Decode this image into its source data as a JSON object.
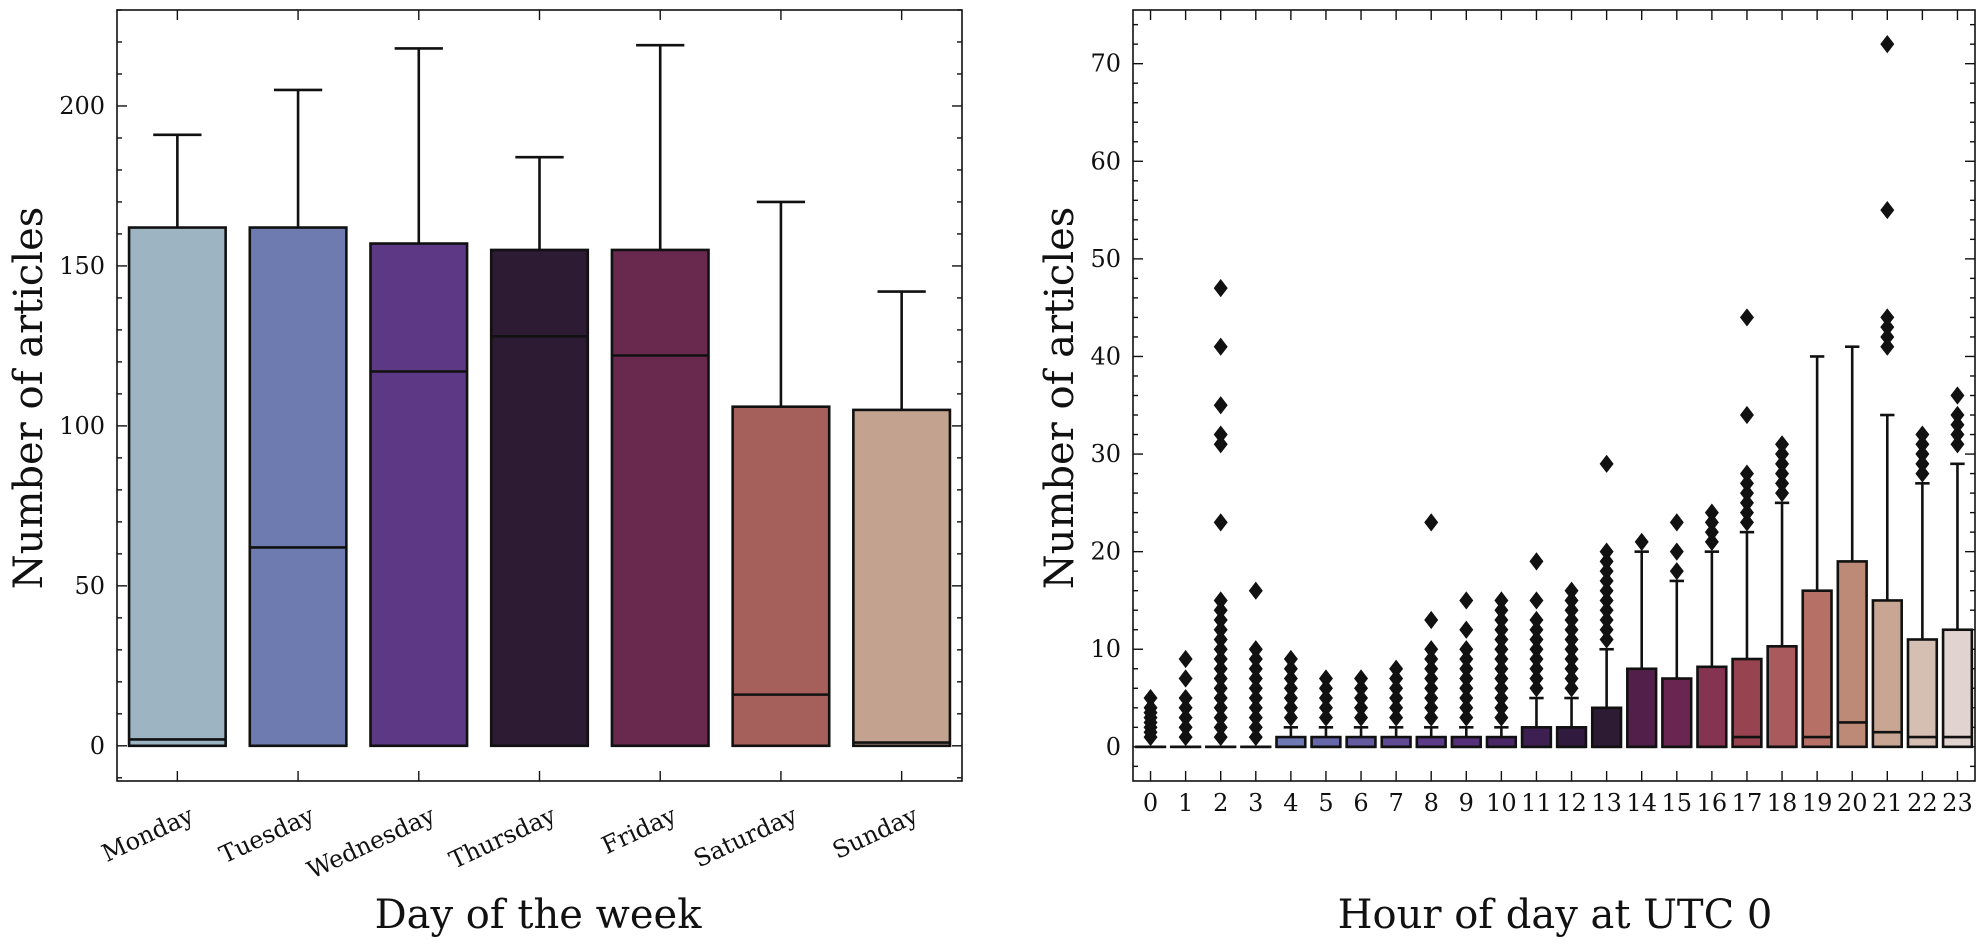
{
  "chart_data": [
    {
      "type": "box",
      "title": "",
      "xlabel": "Day of the week",
      "ylabel": "Number of articles",
      "ylim": [
        -11,
        230
      ],
      "yticks": [
        0,
        50,
        100,
        150,
        200
      ],
      "grid": false,
      "categories": [
        "Monday",
        "Tuesday",
        "Wednesday",
        "Thursday",
        "Friday",
        "Saturday",
        "Sunday"
      ],
      "colors": [
        "#9db4c2",
        "#6e7bb0",
        "#5c3885",
        "#2d1a33",
        "#69284e",
        "#a6605b",
        "#c3a290"
      ],
      "boxes": [
        {
          "whislo": 0,
          "q1": 0,
          "med": 2,
          "q3": 162,
          "whishi": 191
        },
        {
          "whislo": 0,
          "q1": 0,
          "med": 62,
          "q3": 162,
          "whishi": 205
        },
        {
          "whislo": 0,
          "q1": 0,
          "med": 117,
          "q3": 157,
          "whishi": 218
        },
        {
          "whislo": 0,
          "q1": 0,
          "med": 128,
          "q3": 155,
          "whishi": 184
        },
        {
          "whislo": 0,
          "q1": 0,
          "med": 122,
          "q3": 155,
          "whishi": 219
        },
        {
          "whislo": 0,
          "q1": 0,
          "med": 16,
          "q3": 106,
          "whishi": 170
        },
        {
          "whislo": 0,
          "q1": 0,
          "med": 1,
          "q3": 105,
          "whishi": 142
        }
      ]
    },
    {
      "type": "box",
      "title": "",
      "xlabel": "Hour of day at UTC 0",
      "ylabel": "Number of articles",
      "ylim": [
        -3.5,
        75.5
      ],
      "yticks": [
        0,
        10,
        20,
        30,
        40,
        50,
        60,
        70
      ],
      "grid": false,
      "categories": [
        "0",
        "1",
        "2",
        "3",
        "4",
        "5",
        "6",
        "7",
        "8",
        "9",
        "10",
        "11",
        "12",
        "13",
        "14",
        "15",
        "16",
        "17",
        "18",
        "19",
        "20",
        "21",
        "22",
        "23"
      ],
      "colors": [
        "#b0c4d3",
        "#9cb3c8",
        "#8ba0c2",
        "#7d8cbb",
        "#6f79b4",
        "#6767ab",
        "#635aa0",
        "#5f4a95",
        "#5c3b88",
        "#552f79",
        "#4b2666",
        "#3e1f52",
        "#301a3d",
        "#2d1a33",
        "#521f4b",
        "#6a2650",
        "#843450",
        "#974350",
        "#a85a5c",
        "#b67066",
        "#be8a78",
        "#c9a693",
        "#d5beb2",
        "#e0d3d0"
      ],
      "boxes": [
        {
          "whislo": 0,
          "q1": 0,
          "med": 0,
          "q3": 0,
          "whishi": 0,
          "fliers": [
            1,
            1.5,
            2,
            2.5,
            3,
            3.5,
            4,
            5
          ]
        },
        {
          "whislo": 0,
          "q1": 0,
          "med": 0,
          "q3": 0,
          "whishi": 0,
          "fliers": [
            1,
            2,
            3,
            4,
            5,
            7,
            9
          ]
        },
        {
          "whislo": 0,
          "q1": 0,
          "med": 0,
          "q3": 0,
          "whishi": 0,
          "fliers": [
            1,
            2,
            3,
            4,
            5,
            6,
            7,
            8,
            9,
            10,
            11,
            12,
            13,
            14,
            15,
            23,
            31,
            32,
            35,
            41,
            47
          ]
        },
        {
          "whislo": 0,
          "q1": 0,
          "med": 0,
          "q3": 0,
          "whishi": 0,
          "fliers": [
            1,
            2,
            3,
            4,
            5,
            6,
            7,
            8,
            9,
            10,
            16
          ]
        },
        {
          "whislo": 0,
          "q1": 0,
          "med": 0,
          "q3": 1,
          "whishi": 2,
          "fliers": [
            3,
            4,
            5,
            6,
            7,
            8,
            9
          ]
        },
        {
          "whislo": 0,
          "q1": 0,
          "med": 0,
          "q3": 1,
          "whishi": 2,
          "fliers": [
            3,
            4,
            5,
            6,
            7
          ]
        },
        {
          "whislo": 0,
          "q1": 0,
          "med": 0,
          "q3": 1,
          "whishi": 2,
          "fliers": [
            3,
            4,
            5,
            6,
            7
          ]
        },
        {
          "whislo": 0,
          "q1": 0,
          "med": 0,
          "q3": 1,
          "whishi": 2,
          "fliers": [
            3,
            4,
            5,
            6,
            7,
            8
          ]
        },
        {
          "whislo": 0,
          "q1": 0,
          "med": 0,
          "q3": 1,
          "whishi": 2,
          "fliers": [
            3,
            4,
            5,
            6,
            7,
            8,
            9,
            10,
            13,
            23
          ]
        },
        {
          "whislo": 0,
          "q1": 0,
          "med": 0,
          "q3": 1,
          "whishi": 2,
          "fliers": [
            3,
            4,
            5,
            6,
            7,
            8,
            9,
            10,
            12,
            15
          ]
        },
        {
          "whislo": 0,
          "q1": 0,
          "med": 0,
          "q3": 1,
          "whishi": 2,
          "fliers": [
            3,
            4,
            5,
            6,
            7,
            8,
            9,
            10,
            11,
            12,
            13,
            14,
            15
          ]
        },
        {
          "whislo": 0,
          "q1": 0,
          "med": 0,
          "q3": 2,
          "whishi": 5,
          "fliers": [
            6,
            7,
            8,
            9,
            10,
            11,
            12,
            13,
            15,
            19
          ]
        },
        {
          "whislo": 0,
          "q1": 0,
          "med": 0,
          "q3": 2,
          "whishi": 5,
          "fliers": [
            6,
            7,
            8,
            9,
            10,
            11,
            12,
            13,
            14,
            15,
            16
          ]
        },
        {
          "whislo": 0,
          "q1": 0,
          "med": 0,
          "q3": 4,
          "whishi": 10,
          "fliers": [
            11,
            12,
            13,
            14,
            15,
            16,
            17,
            18,
            19,
            20,
            29
          ]
        },
        {
          "whislo": 0,
          "q1": 0,
          "med": 0,
          "q3": 8,
          "whishi": 20,
          "fliers": [
            21
          ]
        },
        {
          "whislo": 0,
          "q1": 0,
          "med": 0,
          "q3": 7,
          "whishi": 17,
          "fliers": [
            18,
            20,
            23
          ]
        },
        {
          "whislo": 0,
          "q1": 0,
          "med": 0,
          "q3": 8.2,
          "whishi": 20,
          "fliers": [
            21,
            22,
            23,
            24
          ]
        },
        {
          "whislo": 0,
          "q1": 0,
          "med": 1,
          "q3": 9,
          "whishi": 22,
          "fliers": [
            23,
            24,
            25,
            26,
            27,
            28,
            34,
            44
          ]
        },
        {
          "whislo": 0,
          "q1": 0,
          "med": 0,
          "q3": 10.3,
          "whishi": 25,
          "fliers": [
            26,
            27,
            28,
            29,
            30,
            31
          ]
        },
        {
          "whislo": 0,
          "q1": 0,
          "med": 1,
          "q3": 16,
          "whishi": 40,
          "fliers": []
        },
        {
          "whislo": 0,
          "q1": 0,
          "med": 2.5,
          "q3": 19,
          "whishi": 41,
          "fliers": []
        },
        {
          "whislo": 0,
          "q1": 0,
          "med": 1.5,
          "q3": 15,
          "whishi": 34,
          "fliers": [
            41,
            42,
            43,
            44,
            55,
            72
          ]
        },
        {
          "whislo": 0,
          "q1": 0,
          "med": 1,
          "q3": 11,
          "whishi": 27,
          "fliers": [
            28,
            29,
            30,
            31,
            32
          ]
        },
        {
          "whislo": 0,
          "q1": 0,
          "med": 1,
          "q3": 12,
          "whishi": 29,
          "fliers": [
            31,
            32,
            33,
            34,
            36
          ]
        }
      ]
    }
  ]
}
